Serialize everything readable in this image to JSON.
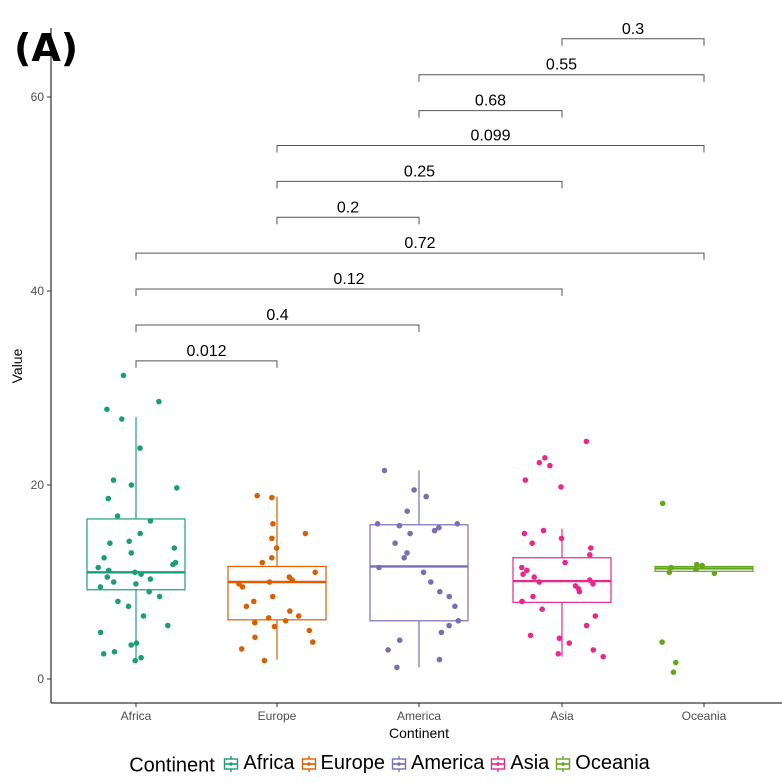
{
  "panel_label": "(A)",
  "legend": {
    "title": "Continent",
    "items": [
      {
        "label": "Africa",
        "color": "#1b9e77"
      },
      {
        "label": "Europe",
        "color": "#d95f02"
      },
      {
        "label": "America",
        "color": "#7570b3"
      },
      {
        "label": "Asia",
        "color": "#e7298a"
      },
      {
        "label": "Oceania",
        "color": "#66a61e"
      }
    ]
  },
  "chart_data": {
    "type": "box",
    "title": "",
    "xlabel": "Continent",
    "ylabel": "Value",
    "ylim": [
      -2.5,
      66
    ],
    "yticks": [
      0,
      20,
      40,
      60
    ],
    "grid": false,
    "legend_position": "bottom",
    "categories": [
      "Africa",
      "Europe",
      "America",
      "Asia",
      "Oceania"
    ],
    "colors": [
      "#1b9e77",
      "#d95f02",
      "#7570b3",
      "#e7298a",
      "#66a61e"
    ],
    "boxes": [
      {
        "category": "Africa",
        "min": 2.0,
        "q1": 9.2,
        "median": 11.0,
        "q3": 16.5,
        "max": 27.0
      },
      {
        "category": "Europe",
        "min": 2.0,
        "q1": 6.1,
        "median": 10.0,
        "q3": 11.6,
        "max": 18.8
      },
      {
        "category": "America",
        "min": 1.2,
        "q1": 6.0,
        "median": 11.6,
        "q3": 15.9,
        "max": 21.5
      },
      {
        "category": "Asia",
        "min": 2.3,
        "q1": 7.9,
        "median": 10.1,
        "q3": 12.5,
        "max": 15.5
      },
      {
        "category": "Oceania",
        "min": 11.0,
        "q1": 11.1,
        "median": 11.4,
        "q3": 11.6,
        "max": 11.8
      }
    ],
    "outliers": [
      {
        "category": "Africa",
        "values": [
          28.6,
          31.3
        ]
      },
      {
        "category": "Asia",
        "values": [
          19.8,
          20.5,
          22.0,
          22.3,
          22.8,
          24.5
        ]
      },
      {
        "category": "Oceania",
        "values": [
          0.7,
          1.7,
          3.8,
          18.1
        ]
      }
    ],
    "points": [
      {
        "category": "Africa",
        "values": [
          1.9,
          2.2,
          2.6,
          2.8,
          3.5,
          3.7,
          4.8,
          5.5,
          6.5,
          7.5,
          8.0,
          8.5,
          9.0,
          9.5,
          9.8,
          10.0,
          10.3,
          10.5,
          10.8,
          11.0,
          11.2,
          11.5,
          11.8,
          12.0,
          12.5,
          13.0,
          13.5,
          14.0,
          14.2,
          15.0,
          16.3,
          16.8,
          18.6,
          19.7,
          20.0,
          20.5,
          23.8,
          26.8,
          27.8,
          28.6,
          31.3
        ]
      },
      {
        "category": "Europe",
        "values": [
          1.9,
          3.1,
          3.8,
          4.3,
          5.0,
          5.4,
          5.8,
          6.0,
          6.3,
          6.5,
          7.0,
          7.5,
          8.0,
          8.5,
          9.5,
          9.8,
          10.0,
          10.2,
          10.5,
          11.0,
          12.0,
          12.5,
          13.5,
          14.5,
          15.0,
          16.0,
          18.7,
          18.9
        ]
      },
      {
        "category": "America",
        "values": [
          1.2,
          2.0,
          3.0,
          4.0,
          4.8,
          5.5,
          6.0,
          7.5,
          8.5,
          9.0,
          10.0,
          11.0,
          11.5,
          12.5,
          13.0,
          14.0,
          15.0,
          15.3,
          15.6,
          15.8,
          16.0,
          16.0,
          17.3,
          18.8,
          19.5,
          21.5
        ]
      },
      {
        "category": "Asia",
        "values": [
          2.3,
          2.6,
          3.0,
          3.7,
          4.2,
          4.5,
          5.5,
          6.5,
          7.2,
          8.0,
          8.5,
          9.0,
          9.3,
          9.6,
          9.8,
          10.0,
          10.2,
          10.5,
          10.8,
          11.2,
          11.5,
          12.0,
          12.8,
          13.5,
          14.0,
          14.5,
          15.0,
          15.3,
          19.8,
          20.5,
          22.0,
          22.3,
          22.8,
          24.5
        ]
      },
      {
        "category": "Oceania",
        "values": [
          0.7,
          1.7,
          3.8,
          10.9,
          11.0,
          11.3,
          11.5,
          11.7,
          11.8,
          18.1
        ]
      }
    ],
    "comparisons": [
      {
        "from": "Africa",
        "to": "Europe",
        "y": 32.8,
        "label": "0.012"
      },
      {
        "from": "Africa",
        "to": "America",
        "y": 36.5,
        "label": "0.4"
      },
      {
        "from": "Africa",
        "to": "Asia",
        "y": 40.2,
        "label": "0.12"
      },
      {
        "from": "Africa",
        "to": "Oceania",
        "y": 43.9,
        "label": "0.72"
      },
      {
        "from": "Europe",
        "to": "America",
        "y": 47.6,
        "label": "0.2"
      },
      {
        "from": "Europe",
        "to": "Asia",
        "y": 51.3,
        "label": "0.25"
      },
      {
        "from": "Europe",
        "to": "Oceania",
        "y": 55.0,
        "label": "0.099"
      },
      {
        "from": "America",
        "to": "Asia",
        "y": 58.6,
        "label": "0.68"
      },
      {
        "from": "America",
        "to": "Oceania",
        "y": 62.3,
        "label": "0.55"
      },
      {
        "from": "Asia",
        "to": "Oceania",
        "y": 66.0,
        "label": "0.3"
      }
    ]
  }
}
